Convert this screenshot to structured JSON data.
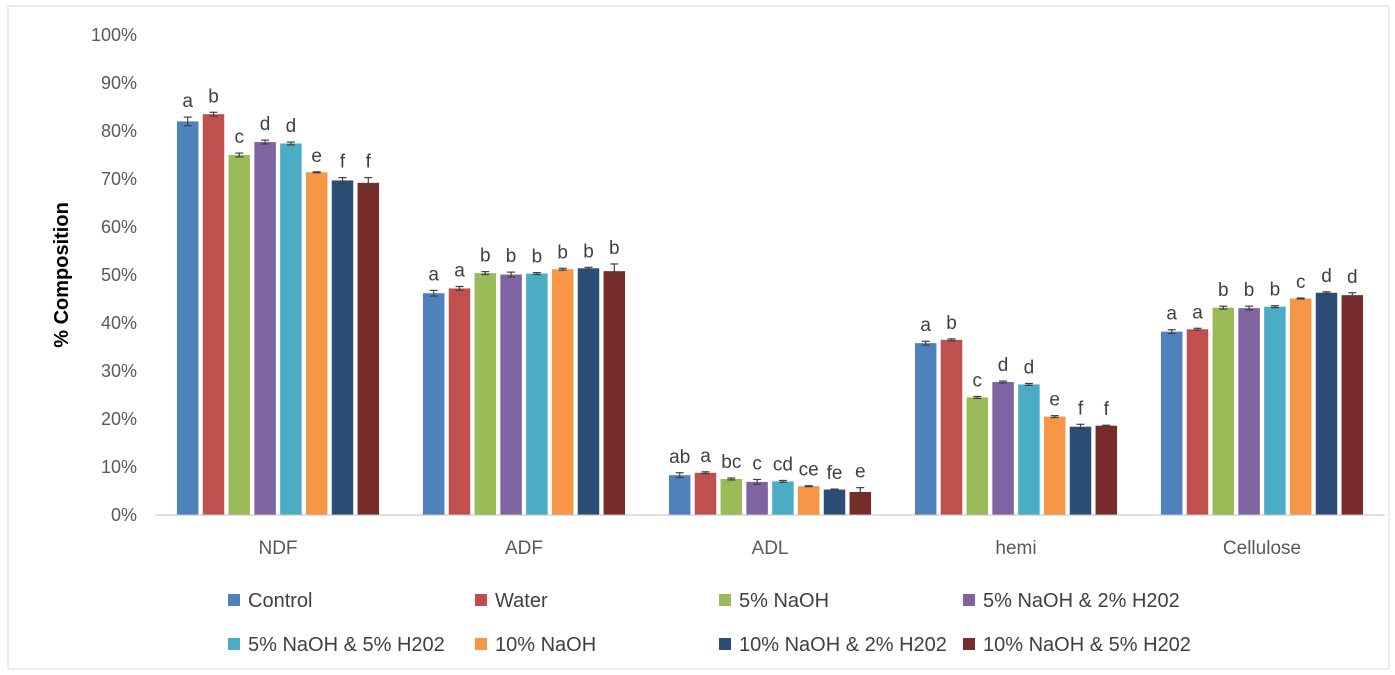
{
  "chart_data": {
    "type": "bar",
    "title": "",
    "xlabel": "",
    "ylabel": "% Composition",
    "ylim": [
      0,
      100
    ],
    "yticks": [
      "0%",
      "10%",
      "20%",
      "30%",
      "40%",
      "50%",
      "60%",
      "70%",
      "80%",
      "90%",
      "100%"
    ],
    "grid": false,
    "legend": "bottom",
    "categories": [
      "NDF",
      "ADF",
      "ADL",
      "hemi",
      "Cellulose"
    ],
    "series": [
      {
        "name": "Control",
        "color": "#4f81bd",
        "values": [
          82.0,
          46.2,
          8.3,
          35.8,
          38.2
        ],
        "errors": [
          0.9,
          0.6,
          0.5,
          0.4,
          0.4
        ],
        "letters": [
          "a",
          "a",
          "ab",
          "a",
          "a"
        ]
      },
      {
        "name": "Water",
        "color": "#c0504d",
        "values": [
          83.5,
          47.2,
          8.8,
          36.5,
          38.7
        ],
        "errors": [
          0.4,
          0.4,
          0.2,
          0.2,
          0.2
        ],
        "letters": [
          "b",
          "a",
          "a",
          "b",
          "a"
        ]
      },
      {
        "name": "5% NaOH",
        "color": "#9bbb59",
        "values": [
          75.0,
          50.4,
          7.5,
          24.5,
          43.2
        ],
        "errors": [
          0.4,
          0.3,
          0.2,
          0.2,
          0.3
        ],
        "letters": [
          "c",
          "b",
          "bc",
          "c",
          "b"
        ]
      },
      {
        "name": "5% NaOH & 2% H202",
        "color": "#8064a2",
        "values": [
          77.7,
          50.1,
          6.9,
          27.7,
          43.1
        ],
        "errors": [
          0.4,
          0.5,
          0.5,
          0.2,
          0.4
        ],
        "letters": [
          "d",
          "b",
          "c",
          "d",
          "b"
        ]
      },
      {
        "name": "5% NaOH & 5% H202",
        "color": "#4bacc6",
        "values": [
          77.4,
          50.3,
          7.0,
          27.2,
          43.4
        ],
        "errors": [
          0.3,
          0.2,
          0.2,
          0.2,
          0.2
        ],
        "letters": [
          "d",
          "b",
          "cd",
          "d",
          "b"
        ]
      },
      {
        "name": "10% NaOH",
        "color": "#f79646",
        "values": [
          71.4,
          51.2,
          6.0,
          20.5,
          45.1
        ],
        "errors": [
          0.1,
          0.2,
          0.1,
          0.2,
          0.1
        ],
        "letters": [
          "e",
          "b",
          "ce",
          "e",
          "c"
        ]
      },
      {
        "name": "10% NaOH & 2% H202",
        "color": "#2c4d75",
        "values": [
          69.7,
          51.4,
          5.3,
          18.4,
          46.3
        ],
        "errors": [
          0.6,
          0.2,
          0.1,
          0.5,
          0.2
        ],
        "letters": [
          "f",
          "b",
          "fe",
          "f",
          "d"
        ]
      },
      {
        "name": "10% NaOH & 5% H202",
        "color": "#772c2a",
        "values": [
          69.2,
          50.8,
          4.8,
          18.6,
          45.8
        ],
        "errors": [
          1.1,
          1.5,
          0.9,
          0.1,
          0.5
        ],
        "letters": [
          "f",
          "b",
          "e",
          "f",
          "d"
        ]
      }
    ]
  }
}
